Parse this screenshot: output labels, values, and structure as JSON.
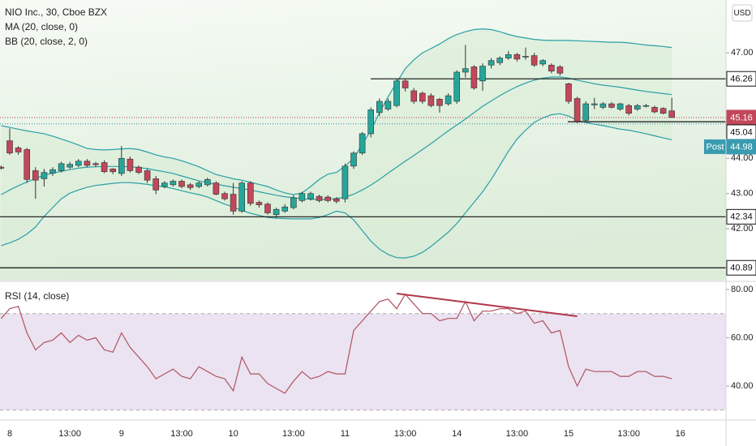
{
  "chart_data": [
    {
      "type": "candlestick",
      "title": "NIO Inc., 30, Cboe BZX",
      "currency": "USD",
      "up_color": "#26a69a",
      "down_color": "#c2475a",
      "categories": [
        null,
        "8",
        null,
        null,
        null,
        null,
        null,
        null,
        "13:00",
        null,
        null,
        null,
        null,
        null,
        "9",
        null,
        null,
        null,
        null,
        null,
        null,
        "13:00",
        null,
        null,
        null,
        null,
        null,
        "10",
        null,
        null,
        null,
        null,
        null,
        null,
        "13:00",
        null,
        null,
        null,
        null,
        null,
        "11",
        null,
        null,
        null,
        null,
        null,
        null,
        "13:00",
        null,
        null,
        null,
        null,
        null,
        "14",
        null,
        null,
        null,
        null,
        null,
        null,
        "13:00",
        null,
        null,
        null,
        null,
        null,
        "15",
        null,
        null,
        null,
        null,
        null,
        null,
        "13:00",
        null,
        null,
        null,
        null,
        null,
        "16"
      ],
      "open": [
        43.75,
        44.5,
        44.3,
        44.25,
        43.65,
        43.42,
        43.58,
        43.65,
        43.75,
        43.8,
        43.92,
        43.85,
        43.88,
        43.7,
        43.57,
        43.98,
        43.75,
        43.65,
        43.42,
        43.2,
        43.25,
        43.35,
        43.25,
        43.2,
        43.25,
        43.3,
        43.0,
        42.98,
        42.5,
        43.3,
        42.75,
        42.7,
        42.4,
        42.5,
        42.6,
        42.8,
        42.85,
        42.92,
        42.9,
        42.85,
        42.85,
        43.78,
        44.15,
        44.7,
        45.3,
        45.4,
        45.5,
        46.2,
        45.92,
        45.85,
        45.78,
        45.68,
        45.55,
        45.62,
        46.45,
        46.6,
        46.2,
        46.65,
        46.72,
        46.85,
        46.95,
        46.88,
        46.92,
        46.68,
        46.65,
        46.6,
        46.12,
        45.7,
        45.08,
        45.52,
        45.45,
        45.55,
        45.4,
        45.5,
        45.4,
        45.5,
        45.45,
        45.42,
        45.35,
        null
      ],
      "high": [
        43.8,
        44.85,
        44.35,
        44.3,
        43.75,
        43.7,
        43.75,
        43.9,
        43.9,
        43.98,
        43.98,
        43.9,
        43.95,
        43.72,
        44.35,
        44.05,
        43.8,
        43.7,
        43.5,
        43.35,
        43.4,
        43.4,
        43.3,
        43.35,
        43.45,
        43.35,
        43.05,
        43.3,
        43.35,
        43.35,
        42.8,
        42.75,
        42.6,
        42.7,
        42.95,
        43.05,
        43.05,
        42.97,
        42.95,
        42.9,
        43.85,
        44.2,
        44.75,
        45.45,
        45.7,
        45.7,
        46.25,
        46.26,
        46.0,
        45.9,
        45.85,
        45.72,
        45.85,
        46.5,
        47.22,
        46.65,
        46.7,
        46.85,
        46.9,
        47.05,
        47.0,
        47.15,
        47.0,
        46.82,
        46.7,
        46.65,
        46.15,
        45.75,
        45.62,
        45.72,
        45.6,
        45.6,
        45.58,
        45.55,
        45.55,
        45.55,
        45.5,
        45.45,
        45.72,
        null
      ],
      "low": [
        43.68,
        44.1,
        44.1,
        43.3,
        42.85,
        43.2,
        43.5,
        43.6,
        43.7,
        43.75,
        43.75,
        43.75,
        43.58,
        43.55,
        43.5,
        43.6,
        43.55,
        43.3,
        42.98,
        43.15,
        43.2,
        43.15,
        43.1,
        43.15,
        43.2,
        42.95,
        42.8,
        42.4,
        42.45,
        42.65,
        42.6,
        42.4,
        42.3,
        42.45,
        42.55,
        42.75,
        42.8,
        42.75,
        42.75,
        42.72,
        42.75,
        43.7,
        44.1,
        44.6,
        45.2,
        45.35,
        45.45,
        45.9,
        45.55,
        45.55,
        45.45,
        45.3,
        45.5,
        45.55,
        46.3,
        45.95,
        45.92,
        46.55,
        46.65,
        46.8,
        46.75,
        46.8,
        46.6,
        46.62,
        46.42,
        46.35,
        45.55,
        45.0,
        45.02,
        45.4,
        45.4,
        45.42,
        45.35,
        45.22,
        45.35,
        45.45,
        45.28,
        45.25,
        45.15,
        null
      ],
      "close": [
        43.72,
        44.15,
        44.18,
        43.4,
        43.38,
        43.6,
        43.68,
        43.85,
        43.83,
        43.92,
        43.8,
        43.82,
        43.62,
        43.62,
        44.0,
        43.65,
        43.6,
        43.38,
        43.1,
        43.3,
        43.35,
        43.2,
        43.17,
        43.3,
        43.4,
        42.98,
        42.85,
        42.5,
        43.3,
        42.72,
        42.68,
        42.45,
        42.55,
        42.62,
        42.88,
        43.0,
        43.0,
        42.8,
        42.8,
        42.78,
        43.78,
        44.15,
        44.7,
        45.38,
        45.62,
        45.62,
        46.2,
        46.0,
        45.62,
        45.62,
        45.5,
        45.5,
        45.78,
        46.45,
        46.55,
        46.0,
        46.62,
        46.78,
        46.85,
        46.95,
        46.82,
        46.9,
        46.65,
        46.78,
        46.48,
        46.42,
        45.62,
        45.05,
        45.55,
        45.55,
        45.55,
        45.45,
        45.55,
        45.28,
        45.5,
        45.5,
        45.32,
        45.28,
        45.16,
        null
      ],
      "indicators": [
        {
          "name": "MA (20, close, 0)"
        },
        {
          "name": "BB (20, close, 2, 0)",
          "color": "#2a9fa6",
          "fill": "#d8ecd6",
          "upper": [
            44.93,
            44.88,
            44.83,
            44.78,
            44.74,
            44.7,
            44.63,
            44.55,
            44.47,
            44.38,
            44.28,
            44.25,
            44.24,
            44.25,
            44.27,
            44.28,
            44.25,
            44.18,
            44.1,
            44.04,
            44.0,
            43.93,
            43.85,
            43.76,
            43.65,
            43.54,
            43.48,
            43.42,
            43.38,
            43.32,
            43.26,
            43.2,
            43.1,
            43.02,
            42.97,
            43.02,
            43.2,
            43.4,
            43.55,
            43.6,
            43.78,
            44.0,
            44.4,
            44.8,
            45.3,
            45.75,
            46.15,
            46.55,
            46.8,
            47.0,
            47.12,
            47.25,
            47.4,
            47.52,
            47.6,
            47.66,
            47.68,
            47.66,
            47.6,
            47.52,
            47.46,
            47.42,
            47.38,
            47.36,
            47.35,
            47.35,
            47.35,
            47.34,
            47.33,
            47.32,
            47.31,
            47.3,
            47.3,
            47.28,
            47.25,
            47.22,
            47.2,
            47.18,
            47.15,
            null
          ],
          "basis": [
            42.97,
            43.1,
            43.22,
            43.33,
            43.43,
            43.52,
            43.58,
            43.63,
            43.68,
            43.72,
            43.75,
            43.76,
            43.77,
            43.77,
            43.77,
            43.76,
            43.74,
            43.71,
            43.66,
            43.62,
            43.57,
            43.5,
            43.43,
            43.36,
            43.31,
            43.27,
            43.22,
            43.18,
            43.14,
            43.1,
            43.05,
            43.0,
            42.95,
            42.91,
            42.88,
            42.85,
            42.84,
            42.83,
            42.84,
            42.86,
            42.9,
            42.98,
            43.1,
            43.24,
            43.4,
            43.58,
            43.75,
            43.92,
            44.08,
            44.25,
            44.42,
            44.6,
            44.78,
            44.95,
            45.12,
            45.3,
            45.48,
            45.63,
            45.78,
            45.92,
            46.04,
            46.14,
            46.22,
            46.28,
            46.31,
            46.31,
            46.28,
            46.22,
            46.17,
            46.12,
            46.08,
            46.05,
            46.02,
            45.98,
            45.94,
            45.9,
            45.87,
            45.84,
            45.81,
            null
          ],
          "lower": [
            41.52,
            41.6,
            41.7,
            41.85,
            42.05,
            42.35,
            42.6,
            42.85,
            43.01,
            43.1,
            43.18,
            43.23,
            43.26,
            43.29,
            43.31,
            43.31,
            43.29,
            43.26,
            43.22,
            43.19,
            43.14,
            43.08,
            43.02,
            42.97,
            42.9,
            42.8,
            42.7,
            42.62,
            42.52,
            42.44,
            42.38,
            42.32,
            42.3,
            42.29,
            42.28,
            42.28,
            42.28,
            42.32,
            42.4,
            42.5,
            42.45,
            42.25,
            41.95,
            41.65,
            41.42,
            41.27,
            41.18,
            41.17,
            41.22,
            41.33,
            41.5,
            41.7,
            41.9,
            42.15,
            42.45,
            42.75,
            43.05,
            43.4,
            43.8,
            44.2,
            44.55,
            44.8,
            45.02,
            45.15,
            45.24,
            45.27,
            45.2,
            45.08,
            45.02,
            44.97,
            44.93,
            44.88,
            44.83,
            44.8,
            44.75,
            44.7,
            44.64,
            44.58,
            44.53,
            null
          ]
        }
      ],
      "hlines": [
        46.26,
        45.04,
        42.34,
        40.89
      ],
      "last_price": 45.16,
      "post_label": "Post",
      "post_price": 44.98,
      "ylim": [
        40.55,
        48.5
      ],
      "yticks": [
        {
          "value": 47,
          "label": "47.00"
        },
        {
          "value": 44,
          "label": "44.00"
        },
        {
          "value": 43,
          "label": "43.00"
        },
        {
          "value": 42,
          "label": "42.00"
        }
      ],
      "grid": false
    },
    {
      "type": "line",
      "title": "RSI (14, close)",
      "color": "#b0525f",
      "values": [
        68,
        72,
        73,
        62,
        55,
        58,
        59,
        62,
        58,
        61,
        59,
        60,
        55,
        54,
        62,
        56,
        52,
        48,
        43,
        45,
        47,
        44,
        43,
        48,
        46,
        44,
        43,
        38,
        52,
        45,
        45,
        41,
        39,
        37,
        42,
        46,
        43,
        44,
        46,
        45,
        45,
        63,
        67,
        71,
        75,
        76,
        72,
        78,
        74,
        70,
        70,
        67,
        68,
        68,
        75,
        67,
        71,
        71,
        72,
        72,
        70,
        71,
        66,
        67,
        62,
        63,
        48,
        40,
        47,
        46,
        46,
        46,
        44,
        44,
        46,
        46,
        44,
        44,
        43,
        null
      ],
      "bands": [
        70,
        30
      ],
      "band_fill": "#ebe3f1",
      "trendline": {
        "x": [
          46,
          67
        ],
        "values": [
          78.3,
          68.9
        ],
        "color": "#b2374a"
      },
      "ylim": [
        25.9,
        83
      ],
      "yticks": [
        {
          "value": 80,
          "label": "80.00"
        },
        {
          "value": 60,
          "label": "60.00"
        },
        {
          "value": 40,
          "label": "40.00"
        }
      ]
    }
  ]
}
